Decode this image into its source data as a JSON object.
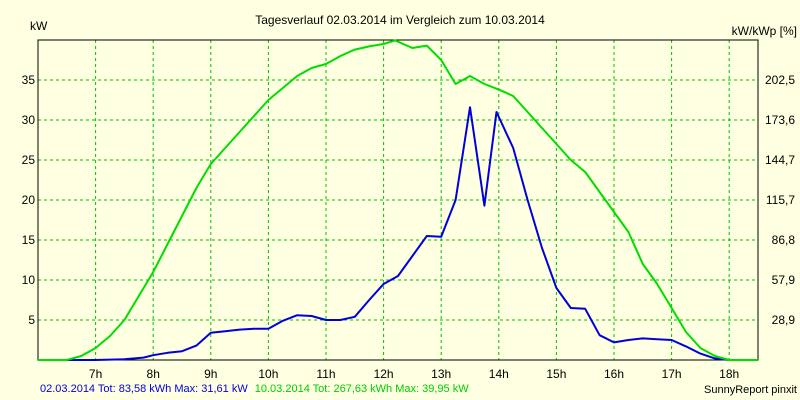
{
  "chart_data": {
    "type": "line",
    "title": "Tagesverlauf 02.03.2014 im Vergleich zum 10.03.2014",
    "ylabel_left": "kW",
    "ylabel_right": "kW/kWp [%]",
    "xlim": [
      6,
      18.5
    ],
    "ylim": [
      0,
      40
    ],
    "x_ticks": [
      {
        "value": 7,
        "label": "7h"
      },
      {
        "value": 8,
        "label": "8h"
      },
      {
        "value": 9,
        "label": "9h"
      },
      {
        "value": 10,
        "label": "10h"
      },
      {
        "value": 11,
        "label": "11h"
      },
      {
        "value": 12,
        "label": "12h"
      },
      {
        "value": 13,
        "label": "13h"
      },
      {
        "value": 14,
        "label": "14h"
      },
      {
        "value": 15,
        "label": "15h"
      },
      {
        "value": 16,
        "label": "16h"
      },
      {
        "value": 17,
        "label": "17h"
      },
      {
        "value": 18,
        "label": "18h"
      }
    ],
    "y_ticks_left": [
      {
        "value": 5,
        "label": "5"
      },
      {
        "value": 10,
        "label": "10"
      },
      {
        "value": 15,
        "label": "15"
      },
      {
        "value": 20,
        "label": "20"
      },
      {
        "value": 25,
        "label": "25"
      },
      {
        "value": 30,
        "label": "30"
      },
      {
        "value": 35,
        "label": "35"
      }
    ],
    "y_ticks_right": [
      {
        "value": 5,
        "label": "28,9"
      },
      {
        "value": 10,
        "label": "57,9"
      },
      {
        "value": 15,
        "label": "86,8"
      },
      {
        "value": 20,
        "label": "115,7"
      },
      {
        "value": 25,
        "label": "144,7"
      },
      {
        "value": 30,
        "label": "173,6"
      },
      {
        "value": 35,
        "label": "202,5"
      }
    ],
    "grid": true,
    "series": [
      {
        "name": "02.03.2014",
        "summary": "02.03.2014 Tot: 83,58 kWh Max: 31,61 kW",
        "color": "#0000dd",
        "points": [
          [
            6.0,
            0
          ],
          [
            6.5,
            0
          ],
          [
            7.0,
            0
          ],
          [
            7.5,
            0.1
          ],
          [
            7.83,
            0.3
          ],
          [
            8.0,
            0.6
          ],
          [
            8.25,
            0.9
          ],
          [
            8.5,
            1.1
          ],
          [
            8.75,
            1.8
          ],
          [
            9.0,
            3.4
          ],
          [
            9.25,
            3.6
          ],
          [
            9.5,
            3.8
          ],
          [
            9.75,
            3.9
          ],
          [
            10.0,
            3.9
          ],
          [
            10.25,
            4.9
          ],
          [
            10.5,
            5.6
          ],
          [
            10.75,
            5.5
          ],
          [
            11.0,
            5.0
          ],
          [
            11.25,
            5.0
          ],
          [
            11.5,
            5.4
          ],
          [
            11.75,
            7.5
          ],
          [
            12.0,
            9.5
          ],
          [
            12.25,
            10.5
          ],
          [
            12.5,
            13.0
          ],
          [
            12.75,
            15.5
          ],
          [
            13.0,
            15.4
          ],
          [
            13.25,
            20.0
          ],
          [
            13.5,
            31.6
          ],
          [
            13.75,
            19.3
          ],
          [
            13.96,
            31.0
          ],
          [
            14.25,
            26.5
          ],
          [
            14.5,
            20.0
          ],
          [
            14.75,
            14.0
          ],
          [
            15.0,
            9.0
          ],
          [
            15.25,
            6.5
          ],
          [
            15.5,
            6.4
          ],
          [
            15.75,
            3.1
          ],
          [
            16.0,
            2.2
          ],
          [
            16.25,
            2.5
          ],
          [
            16.5,
            2.7
          ],
          [
            16.75,
            2.6
          ],
          [
            17.0,
            2.5
          ],
          [
            17.25,
            1.7
          ],
          [
            17.5,
            0.8
          ],
          [
            17.75,
            0.2
          ],
          [
            18.0,
            0
          ],
          [
            18.5,
            0
          ]
        ]
      },
      {
        "name": "10.03.2014",
        "summary": "10.03.2014 Tot: 267,63 kWh Max: 39,95 kW",
        "color": "#00dd00",
        "points": [
          [
            6.0,
            0
          ],
          [
            6.5,
            0
          ],
          [
            6.75,
            0.5
          ],
          [
            7.0,
            1.5
          ],
          [
            7.25,
            3.0
          ],
          [
            7.5,
            5.0
          ],
          [
            7.75,
            8.0
          ],
          [
            8.0,
            11.0
          ],
          [
            8.25,
            14.5
          ],
          [
            8.5,
            18.0
          ],
          [
            8.75,
            21.5
          ],
          [
            9.0,
            24.5
          ],
          [
            9.25,
            26.5
          ],
          [
            9.5,
            28.5
          ],
          [
            9.75,
            30.5
          ],
          [
            10.0,
            32.5
          ],
          [
            10.25,
            34.0
          ],
          [
            10.5,
            35.5
          ],
          [
            10.75,
            36.5
          ],
          [
            11.0,
            37.0
          ],
          [
            11.25,
            38.0
          ],
          [
            11.5,
            38.8
          ],
          [
            11.75,
            39.2
          ],
          [
            12.0,
            39.5
          ],
          [
            12.2,
            39.95
          ],
          [
            12.5,
            39.0
          ],
          [
            12.75,
            39.3
          ],
          [
            13.0,
            37.5
          ],
          [
            13.25,
            34.5
          ],
          [
            13.5,
            35.5
          ],
          [
            13.75,
            34.5
          ],
          [
            14.0,
            33.8
          ],
          [
            14.25,
            33.0
          ],
          [
            14.5,
            31.0
          ],
          [
            14.75,
            29.0
          ],
          [
            15.0,
            27.0
          ],
          [
            15.25,
            25.0
          ],
          [
            15.5,
            23.5
          ],
          [
            15.75,
            21.0
          ],
          [
            16.0,
            18.5
          ],
          [
            16.25,
            16.0
          ],
          [
            16.5,
            12.0
          ],
          [
            16.75,
            9.5
          ],
          [
            17.0,
            6.5
          ],
          [
            17.25,
            3.5
          ],
          [
            17.5,
            1.5
          ],
          [
            17.75,
            0.5
          ],
          [
            18.0,
            0
          ],
          [
            18.5,
            0
          ]
        ]
      }
    ],
    "credit": "SunnyReport pinxit"
  }
}
